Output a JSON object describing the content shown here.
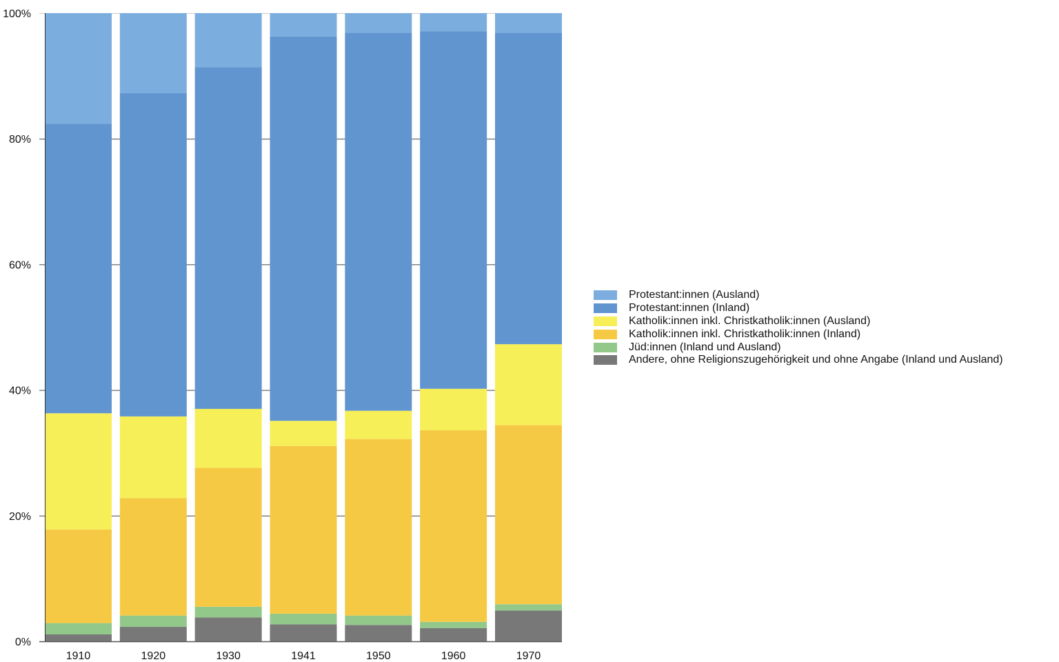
{
  "chart_data": {
    "type": "bar",
    "stacked": true,
    "normalized": true,
    "title": "",
    "xlabel": "",
    "ylabel": "",
    "ylim": [
      0,
      100
    ],
    "y_unit": "%",
    "y_ticks": [
      "0%",
      "20%",
      "40%",
      "60%",
      "80%",
      "100%"
    ],
    "y_tick_values": [
      0,
      20,
      40,
      60,
      80,
      100
    ],
    "grid": false,
    "legend_position": "right",
    "categories": [
      "1910",
      "1920",
      "1930",
      "1941",
      "1950",
      "1960",
      "1970"
    ],
    "series": [
      {
        "name": "Andere, ohne Religionszugehörigkeit und ohne Angabe (Inland und Ausland)",
        "color": "#787878",
        "values": [
          1.1,
          2.3,
          3.8,
          2.7,
          2.6,
          2.1,
          4.9
        ]
      },
      {
        "name": "Jüd:innen (Inland und Ausland)",
        "color": "#92c88a",
        "values": [
          1.8,
          1.8,
          1.7,
          1.7,
          1.5,
          1.0,
          1.0
        ]
      },
      {
        "name": "Katholik:innen inkl. Christkatholik:innen (Inland)",
        "color": "#f6c945",
        "values": [
          14.9,
          18.7,
          22.1,
          26.7,
          28.1,
          30.5,
          28.5
        ]
      },
      {
        "name": "Katholik:innen inkl. Christkatholik:innen (Ausland)",
        "color": "#f6ef57",
        "values": [
          18.5,
          13.0,
          9.4,
          4.0,
          4.5,
          6.6,
          12.9
        ]
      },
      {
        "name": "Protestant:innen (Inland)",
        "color": "#6195cf",
        "values": [
          46.1,
          51.5,
          54.4,
          61.2,
          60.2,
          56.9,
          49.6
        ]
      },
      {
        "name": "Protestant:innen (Ausland)",
        "color": "#7baedf",
        "values": [
          17.6,
          12.7,
          8.6,
          3.7,
          3.1,
          2.9,
          3.1
        ]
      }
    ],
    "legend_order": [
      "Protestant:innen (Ausland)",
      "Protestant:innen (Inland)",
      "Katholik:innen inkl. Christkatholik:innen (Ausland)",
      "Katholik:innen inkl. Christkatholik:innen (Inland)",
      "Jüd:innen (Inland und Ausland)",
      "Andere, ohne Religionszugehörigkeit und ohne Angabe (Inland und Ausland)"
    ]
  }
}
